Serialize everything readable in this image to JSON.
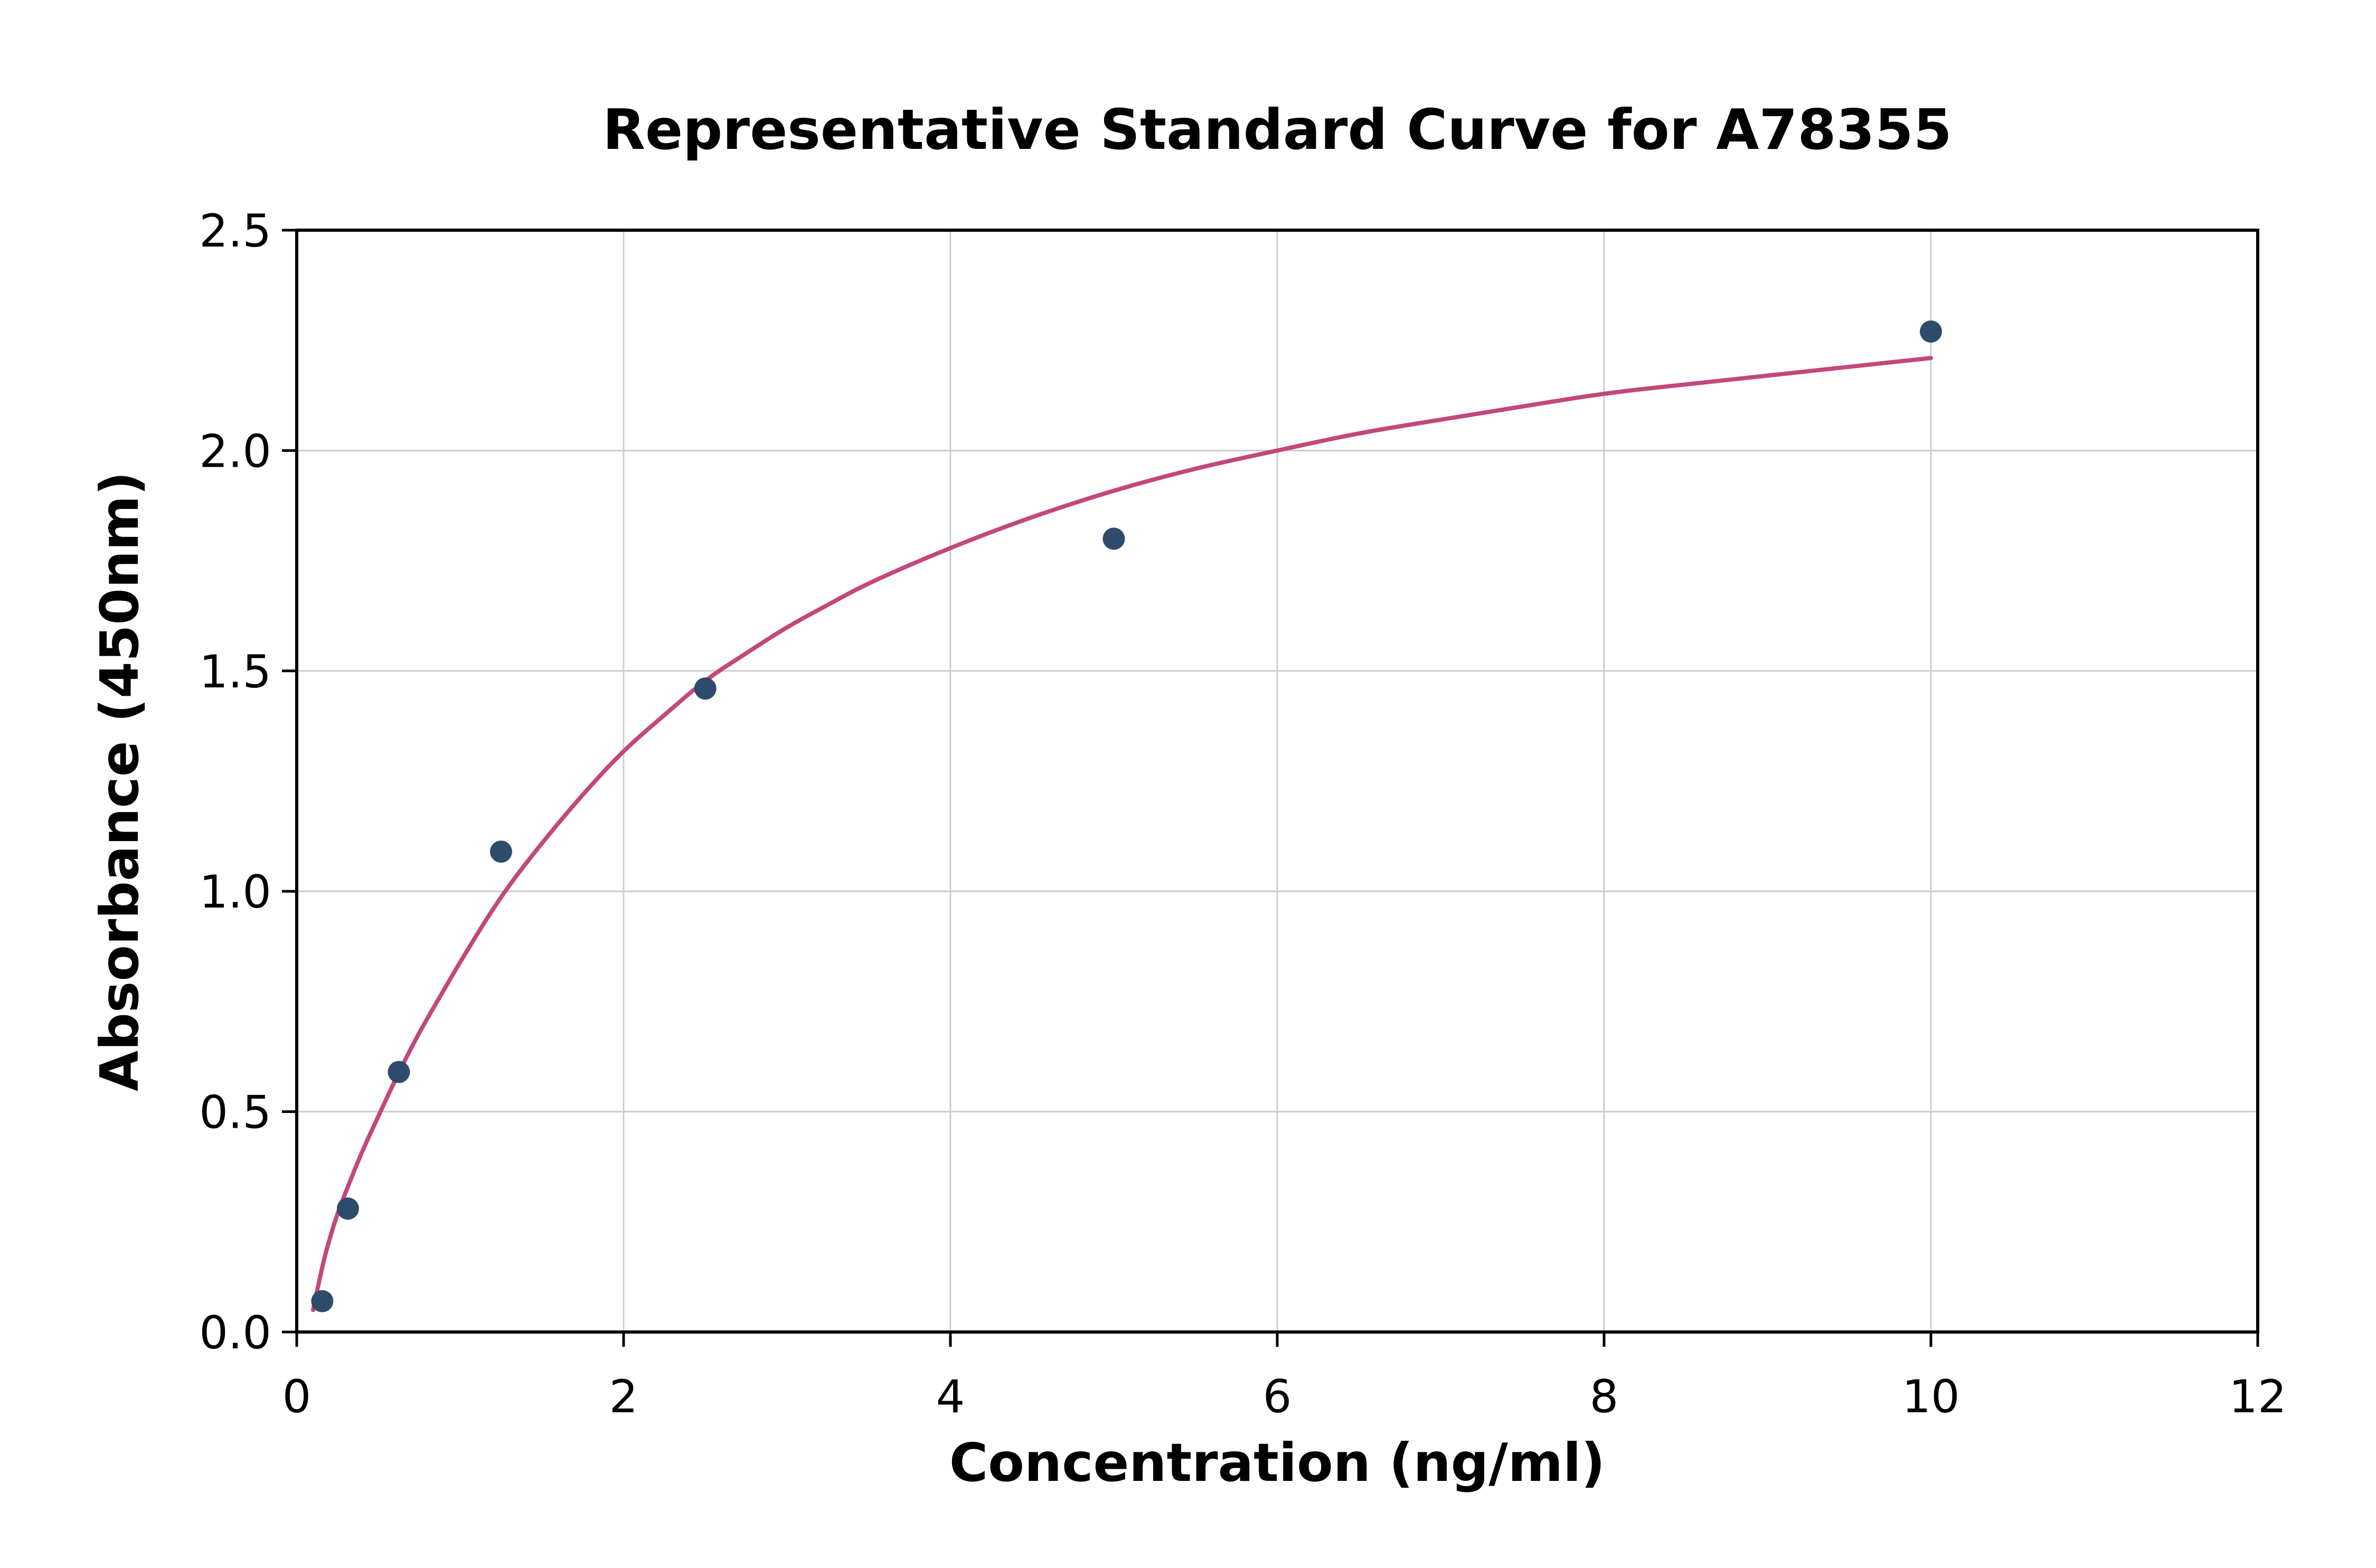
{
  "chart_data": {
    "type": "scatter",
    "title": "Representative Standard Curve for A78355",
    "xlabel": "Concentration (ng/ml)",
    "ylabel": "Absorbance (450nm)",
    "xlim": [
      0,
      12
    ],
    "ylim": [
      0,
      2.5
    ],
    "x_ticks": [
      0,
      2,
      4,
      6,
      8,
      10,
      12
    ],
    "x_tick_labels": [
      "0",
      "2",
      "4",
      "6",
      "8",
      "10",
      "12"
    ],
    "y_ticks": [
      0.0,
      0.5,
      1.0,
      1.5,
      2.0,
      2.5
    ],
    "y_tick_labels": [
      "0.0",
      "0.5",
      "1.0",
      "1.5",
      "2.0",
      "2.5"
    ],
    "grid": true,
    "legend": "none",
    "style": {
      "background": "#ffffff",
      "grid_color": "#cccccc",
      "spine_color": "#000000",
      "tick_color": "#000000",
      "text_color": "#000000"
    },
    "series": [
      {
        "name": "fit-curve",
        "type": "line",
        "color": "#c3487a",
        "line_width": 8,
        "points": [
          [
            0.1,
            0.05
          ],
          [
            0.156,
            0.15
          ],
          [
            0.2,
            0.21
          ],
          [
            0.25,
            0.27
          ],
          [
            0.313,
            0.33
          ],
          [
            0.4,
            0.41
          ],
          [
            0.5,
            0.49
          ],
          [
            0.625,
            0.59
          ],
          [
            0.75,
            0.68
          ],
          [
            0.875,
            0.76
          ],
          [
            1.0,
            0.84
          ],
          [
            1.25,
            0.99
          ],
          [
            1.5,
            1.11
          ],
          [
            1.75,
            1.22
          ],
          [
            2.0,
            1.32
          ],
          [
            2.25,
            1.4
          ],
          [
            2.5,
            1.48
          ],
          [
            2.75,
            1.54
          ],
          [
            3.0,
            1.6
          ],
          [
            3.25,
            1.65
          ],
          [
            3.5,
            1.7
          ],
          [
            4.0,
            1.78
          ],
          [
            4.5,
            1.85
          ],
          [
            5.0,
            1.91
          ],
          [
            5.5,
            1.96
          ],
          [
            6.0,
            2.0
          ],
          [
            6.5,
            2.04
          ],
          [
            7.0,
            2.07
          ],
          [
            7.5,
            2.1
          ],
          [
            8.0,
            2.13
          ],
          [
            8.5,
            2.15
          ],
          [
            9.0,
            2.17
          ],
          [
            9.5,
            2.19
          ],
          [
            10.0,
            2.21
          ]
        ]
      },
      {
        "name": "standard-points",
        "type": "scatter",
        "color": "#2f4b6c",
        "marker_radius": 21,
        "points": [
          [
            0.156,
            0.07
          ],
          [
            0.313,
            0.28
          ],
          [
            0.625,
            0.59
          ],
          [
            1.25,
            1.09
          ],
          [
            2.5,
            1.46
          ],
          [
            5.0,
            1.8
          ],
          [
            10.0,
            2.27
          ]
        ]
      }
    ]
  }
}
